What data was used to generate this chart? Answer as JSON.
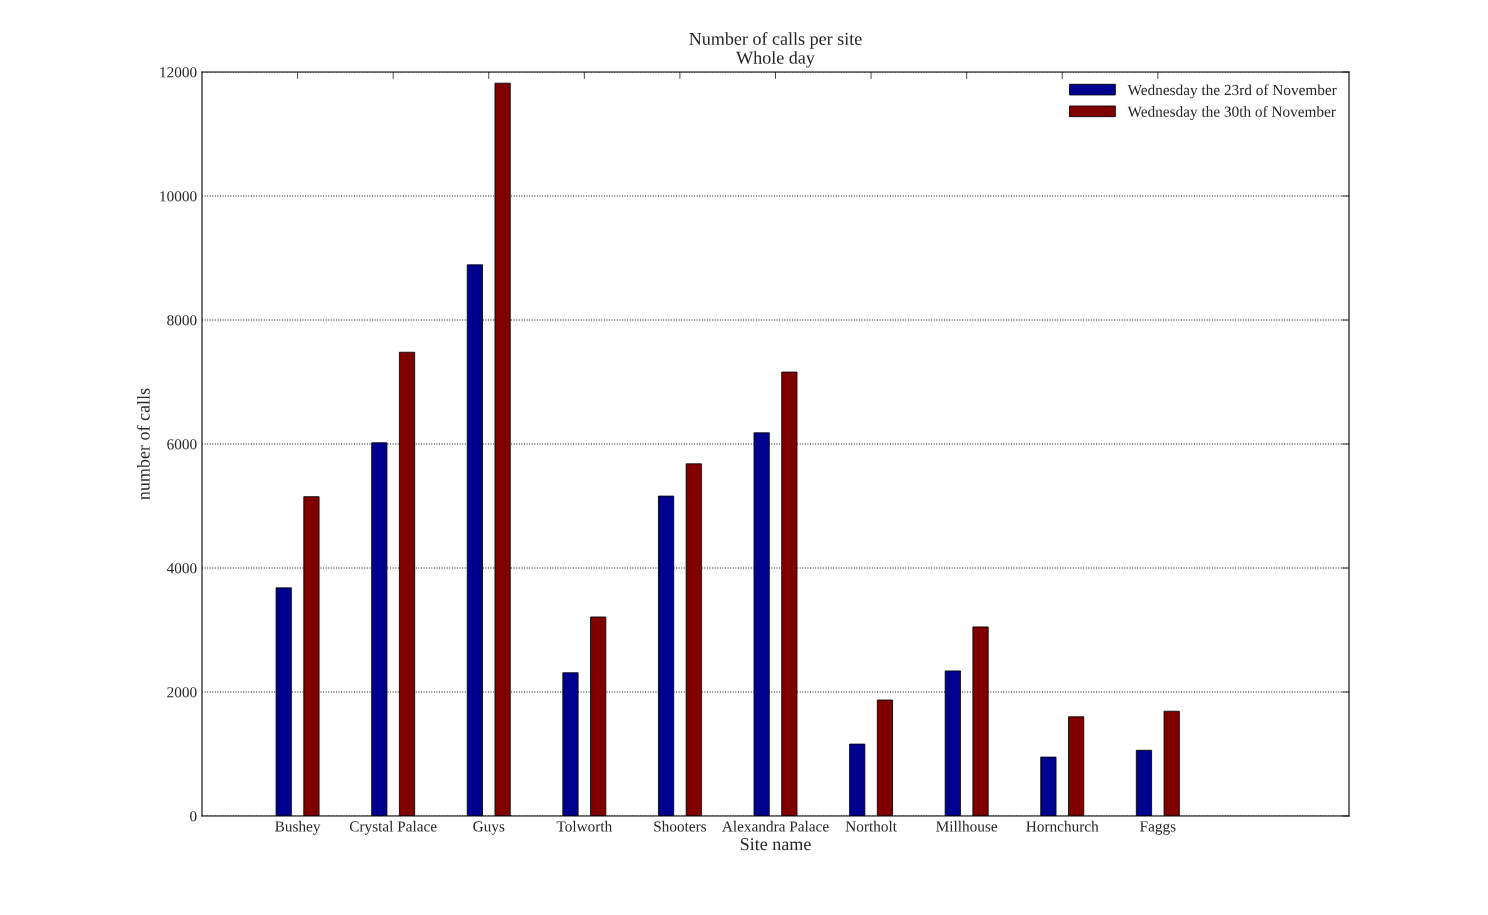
{
  "chart_data": {
    "type": "bar",
    "title": "Number of calls per site\nWhole day",
    "xlabel": "Site name",
    "ylabel": "number of calls",
    "categories": [
      "Bushey",
      "Crystal Palace",
      "Guys",
      "Tolworth",
      "Shooters",
      "Alexandra Palace",
      "Northolt",
      "Millhouse",
      "Hornchurch",
      "Faggs"
    ],
    "series": [
      {
        "name": "Wednesday the 23rd of November",
        "color": "#00008f",
        "values": [
          3680,
          6020,
          8890,
          2310,
          5160,
          6180,
          1160,
          2340,
          950,
          1060
        ]
      },
      {
        "name": "Wednesday the 30th of November",
        "color": "#800000",
        "values": [
          5150,
          7480,
          11820,
          3210,
          5680,
          7160,
          1870,
          3050,
          1600,
          1690
        ]
      }
    ],
    "ylim": [
      0,
      12000
    ],
    "yticks": [
      0,
      2000,
      4000,
      6000,
      8000,
      10000,
      12000
    ],
    "grid": "y",
    "legend": "top right"
  }
}
